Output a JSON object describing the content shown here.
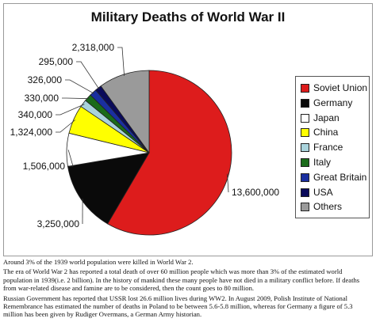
{
  "chart_data": {
    "type": "pie",
    "title": "Military Deaths of World War II",
    "categories": [
      "Soviet Union",
      "Germany",
      "Japan",
      "China",
      "France",
      "Italy",
      "Great Britain",
      "USA",
      "Others"
    ],
    "values": [
      13600000,
      3250000,
      1506000,
      1324000,
      340000,
      330000,
      326000,
      295000,
      2318000
    ],
    "data_labels": [
      "13,600,000",
      "3,250,000",
      "1,506,000",
      "1,324,000",
      "340,000",
      "330,000",
      "326,000",
      "295,000",
      "2,318,000"
    ],
    "colors": [
      "#dd1c1c",
      "#0a0a0a",
      "#ffffff",
      "#ffff00",
      "#a9d3dc",
      "#1a6b1a",
      "#1a2fa0",
      "#0a0a5a",
      "#9a9a9a"
    ],
    "legend_position": "right"
  },
  "notes": [
    "Around 3% of the 1939 world population were killed in World War 2.",
    "The era of World War 2 has reported a total death of over 60 million people which was more than 3% of the estimated world population in 1939(i.e. 2 billion). In the history of mankind these many people have not died in a military conflict before. If deaths from war-related disease and famine are to be considered, then the count goes to 80 million.",
    "Russian Government has reported that USSR lost 26.6 million lives during WW2. In August 2009, Polish Institute of National Remembrance has estimated the number of deaths in Poland to be between 5.6-5.8 million, whereas for Germany a figure of 5.3 million has been given by Rudiger Overmans, a German Army historian."
  ]
}
